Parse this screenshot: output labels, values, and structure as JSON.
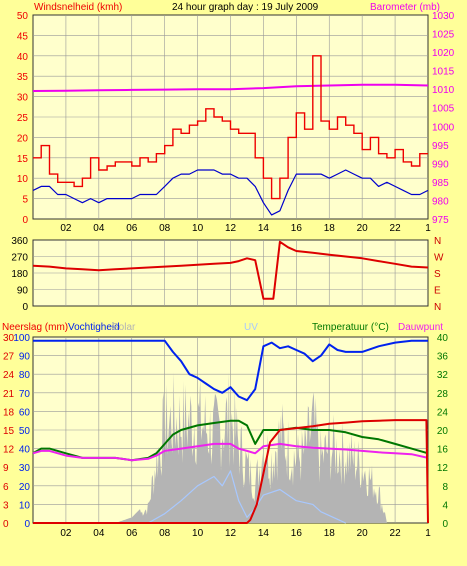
{
  "header": {
    "left_label": "Windsnelheid (kmh)",
    "title": "24 hour graph day : 19 July 2009",
    "right_label": "Barometer (mb)"
  },
  "panel3_labels": {
    "rain": "Neerslag (mm)",
    "humidity": "Vochtigheid",
    "solar": "Solar",
    "uv": "UV",
    "temperature": "Temperatuur (°C)",
    "dewpoint": "Dauwpunt"
  },
  "colors": {
    "background": "#ffff99",
    "plot_bg": "#ffffcc",
    "wind_speed": "#ee0000",
    "wind_avg": "#0000cc",
    "barometer": "#ee00ee",
    "wind_dir": "#dd0000",
    "humidity": "#0022ee",
    "temperature": "#007700",
    "dewpoint": "#ee22ee",
    "rain": "#dd0000",
    "solar": "#b4b4b4",
    "uv": "#a8c8ff",
    "left_axis": "#ee0000",
    "right_axis": "#ee00ee",
    "green_axis": "#007700"
  },
  "chart_data": [
    {
      "type": "line",
      "name": "panel-wind-barometer",
      "x_ticks": [
        "02",
        "04",
        "06",
        "08",
        "10",
        "12",
        "14",
        "16",
        "18",
        "20",
        "22",
        "1"
      ],
      "xlim": [
        0,
        24
      ],
      "left_axis": {
        "label": "Windsnelheid (kmh)",
        "ticks": [
          0,
          5,
          10,
          15,
          20,
          25,
          30,
          35,
          40,
          45,
          50
        ],
        "ylim": [
          0,
          50
        ]
      },
      "right_axis": {
        "label": "Barometer (mb)",
        "ticks": [
          975,
          980,
          985,
          990,
          995,
          1000,
          1005,
          1010,
          1015,
          1020,
          1025,
          1030
        ],
        "ylim": [
          975,
          1030
        ]
      },
      "series": [
        {
          "key": "gust",
          "axis": "left",
          "x": [
            0,
            0.5,
            1,
            1.5,
            2,
            2.5,
            3,
            3.5,
            4,
            4.5,
            5,
            5.5,
            6,
            6.5,
            7,
            7.5,
            8,
            8.5,
            9,
            9.5,
            10,
            10.5,
            11,
            11.5,
            12,
            12.5,
            13,
            13.5,
            14,
            14.5,
            15,
            15.5,
            16,
            16.5,
            17,
            17.5,
            18,
            18.5,
            19,
            19.5,
            20,
            20.5,
            21,
            21.5,
            22,
            22.5,
            23,
            23.5,
            24
          ],
          "values": [
            15,
            18,
            11,
            9,
            9,
            8,
            10,
            15,
            12,
            13,
            14,
            14,
            13,
            15,
            14,
            16,
            18,
            22,
            21,
            23,
            24,
            27,
            25,
            24,
            22,
            21,
            21,
            15,
            10,
            5,
            10,
            20,
            26,
            22,
            40,
            24,
            22,
            25,
            23,
            21,
            17,
            20,
            16,
            15,
            17,
            14,
            13,
            16,
            16
          ]
        },
        {
          "key": "avg",
          "axis": "left",
          "x": [
            0,
            0.5,
            1,
            1.5,
            2,
            2.5,
            3,
            3.5,
            4,
            4.5,
            5,
            5.5,
            6,
            6.5,
            7,
            7.5,
            8,
            8.5,
            9,
            9.5,
            10,
            10.5,
            11,
            11.5,
            12,
            12.5,
            13,
            13.5,
            14,
            14.5,
            15,
            15.5,
            16,
            16.5,
            17,
            17.5,
            18,
            18.5,
            19,
            19.5,
            20,
            20.5,
            21,
            21.5,
            22,
            22.5,
            23,
            23.5,
            24
          ],
          "values": [
            7,
            8,
            8,
            6,
            6,
            5,
            4,
            5,
            4,
            5,
            5,
            5,
            5,
            6,
            6,
            6,
            8,
            10,
            11,
            11,
            12,
            12,
            12,
            11,
            11,
            10,
            10,
            8,
            4,
            1,
            2,
            7,
            11,
            11,
            11,
            11,
            10,
            11,
            12,
            11,
            10,
            10,
            8,
            9,
            8,
            7,
            6,
            6,
            7
          ]
        },
        {
          "key": "barometer",
          "axis": "right",
          "x": [
            0,
            2,
            4,
            6,
            8,
            10,
            12,
            14,
            16,
            18,
            20,
            22,
            24
          ],
          "values": [
            1009.5,
            1009.6,
            1009.7,
            1009.8,
            1009.9,
            1010,
            1010,
            1010.3,
            1010.8,
            1011,
            1011.2,
            1011.2,
            1011
          ]
        }
      ]
    },
    {
      "type": "line",
      "name": "panel-wind-direction",
      "xlim": [
        0,
        24
      ],
      "left_axis": {
        "ticks": [
          0,
          90,
          180,
          270,
          360
        ],
        "ylim": [
          0,
          360
        ]
      },
      "right_axis": {
        "ticks": [
          "N",
          "W",
          "S",
          "E",
          "N"
        ]
      },
      "series": [
        {
          "key": "direction",
          "x": [
            0,
            1,
            2,
            3,
            4,
            5,
            6,
            7,
            8,
            9,
            10,
            11,
            12,
            12.5,
            13,
            13.5,
            14,
            14.6,
            15,
            15.5,
            16,
            17,
            18,
            19,
            20,
            21,
            22,
            23,
            24
          ],
          "values": [
            220,
            215,
            205,
            200,
            195,
            200,
            205,
            210,
            215,
            220,
            225,
            230,
            235,
            245,
            260,
            250,
            40,
            40,
            350,
            320,
            300,
            290,
            280,
            270,
            260,
            245,
            230,
            215,
            210
          ]
        }
      ]
    },
    {
      "type": "line",
      "name": "panel-humidity-temp-rain",
      "xlim": [
        0,
        24
      ],
      "left_axis": {
        "label": "Vochtigheid",
        "ticks": [
          0,
          10,
          20,
          30,
          40,
          50,
          60,
          70,
          80,
          90,
          100
        ],
        "ylim": [
          0,
          100
        ]
      },
      "rain_axis": {
        "label": "Neerslag (mm)",
        "ticks": [
          0,
          3,
          6,
          9,
          12,
          15,
          18,
          21,
          24,
          27,
          30
        ],
        "ylim": [
          0,
          30
        ]
      },
      "right_axis": {
        "label": "Temperatuur (°C)",
        "ticks": [
          0,
          4,
          8,
          12,
          16,
          20,
          24,
          28,
          32,
          36,
          40
        ],
        "ylim": [
          0,
          40
        ]
      },
      "series": [
        {
          "key": "humidity",
          "x": [
            0,
            1,
            2,
            3,
            4,
            5,
            6,
            7,
            8,
            8.5,
            9,
            9.5,
            10,
            10.5,
            11,
            11.5,
            12,
            12.5,
            13,
            13.5,
            14,
            14.5,
            15,
            15.5,
            16,
            16.5,
            17,
            17.5,
            18,
            18.5,
            19,
            20,
            21,
            22,
            23,
            24
          ],
          "values": [
            98,
            98,
            98,
            98,
            98,
            98,
            98,
            98,
            98,
            92,
            87,
            80,
            78,
            75,
            72,
            70,
            73,
            68,
            66,
            72,
            95,
            97,
            94,
            95,
            93,
            91,
            87,
            90,
            96,
            93,
            92,
            92,
            95,
            97,
            98,
            98
          ]
        },
        {
          "key": "temperature",
          "x": [
            0,
            0.5,
            1,
            2,
            3,
            4,
            5,
            6,
            7,
            7.5,
            8,
            8.5,
            9,
            10,
            11,
            12,
            12.5,
            13,
            13.5,
            14,
            15,
            16,
            17,
            18,
            19,
            20,
            21,
            22,
            23,
            24
          ],
          "values": [
            15,
            16,
            16,
            15,
            14,
            14,
            14,
            13.5,
            14,
            15,
            17,
            19,
            20,
            21,
            21.5,
            22,
            22,
            21,
            17,
            20,
            20,
            20.5,
            20,
            20,
            19.5,
            18.5,
            18,
            17,
            16,
            15
          ]
        },
        {
          "key": "dewpoint",
          "x": [
            0,
            0.5,
            1,
            2,
            3,
            4,
            5,
            6,
            7,
            7.5,
            8,
            9,
            10,
            11,
            12,
            12.5,
            13,
            13.5,
            14,
            15,
            16,
            17,
            18,
            19,
            20,
            21,
            22,
            23,
            24
          ],
          "values": [
            15,
            15.5,
            15.5,
            14.5,
            14,
            14,
            14,
            13.5,
            13.8,
            14.5,
            15.5,
            16,
            16.5,
            17,
            17,
            16,
            15.5,
            15,
            16.5,
            17,
            16.5,
            16.2,
            16,
            15.8,
            15.5,
            15.2,
            15,
            14.8,
            14
          ]
        },
        {
          "key": "rain",
          "x": [
            0,
            13,
            13.2,
            13.6,
            14,
            14.4,
            15,
            16,
            17,
            18,
            19,
            20,
            21,
            22,
            23,
            23.9,
            24
          ],
          "values": [
            0,
            0,
            0.5,
            3,
            8,
            13,
            15,
            15.3,
            15.6,
            16,
            16.2,
            16.4,
            16.5,
            16.6,
            16.6,
            16.6,
            0
          ]
        },
        {
          "key": "uv",
          "x": [
            7,
            8,
            9,
            10,
            11,
            11.5,
            12,
            12.5,
            13,
            13.5,
            14,
            15,
            16,
            17,
            17.5,
            18,
            18.5,
            19
          ],
          "values": [
            0,
            5,
            12,
            20,
            25,
            20,
            28,
            12,
            3,
            8,
            15,
            18,
            12,
            10,
            6,
            4,
            2,
            0
          ]
        }
      ],
      "solar_profile": {
        "x": [
          5,
          6,
          7,
          7.5,
          8,
          8.5,
          9,
          10,
          11,
          12,
          12.5,
          13,
          13.5,
          14,
          14.5,
          15,
          16,
          16.5,
          17,
          17.5,
          18,
          19,
          20,
          21,
          21.5
        ],
        "values": [
          0,
          3,
          12,
          50,
          75,
          82,
          80,
          82,
          70,
          85,
          62,
          45,
          30,
          60,
          50,
          70,
          50,
          55,
          78,
          50,
          60,
          55,
          45,
          25,
          0
        ]
      }
    }
  ]
}
